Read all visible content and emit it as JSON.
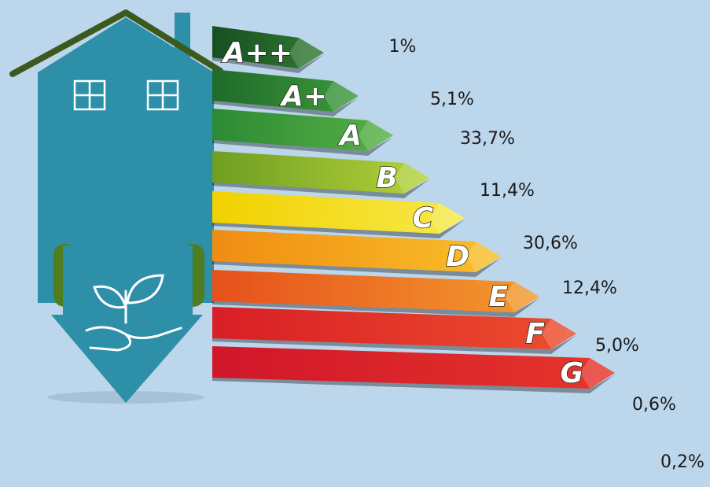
{
  "rows": [
    {
      "label": "A++",
      "share": "1%"
    },
    {
      "label": "A+",
      "share": "5,1%"
    },
    {
      "label": "A",
      "share": "33,7%"
    },
    {
      "label": "B",
      "share": "11,4%"
    },
    {
      "label": "C",
      "share": "30,6%"
    },
    {
      "label": "D",
      "share": "12,4%"
    },
    {
      "label": "E",
      "share": "5,0%"
    },
    {
      "label": "F",
      "share": "0,6%"
    },
    {
      "label": "G",
      "share": "0,2%"
    }
  ]
}
